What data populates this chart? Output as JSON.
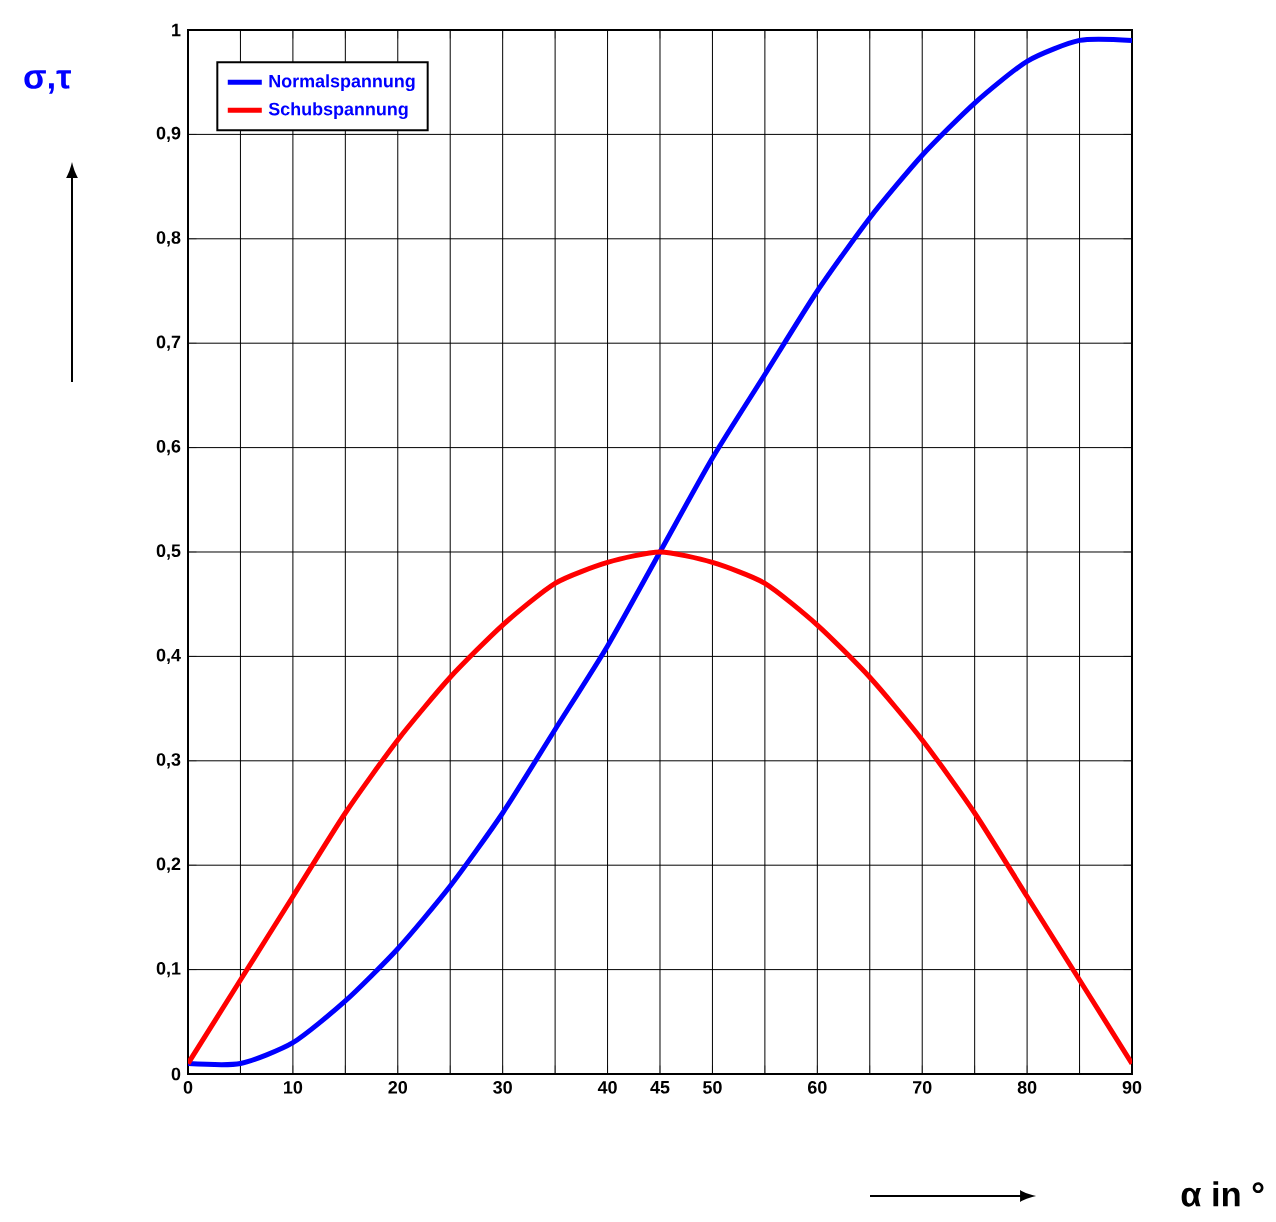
{
  "chart_data": {
    "type": "line",
    "xlabel": "α in °",
    "ylabel": "σ,τ",
    "x": [
      0,
      5,
      10,
      15,
      20,
      25,
      30,
      35,
      40,
      45,
      50,
      55,
      60,
      65,
      70,
      75,
      80,
      85,
      90
    ],
    "series": [
      {
        "name": "Normalspannung",
        "color": "#0000ff",
        "values": [
          0.01,
          0.01,
          0.03,
          0.07,
          0.12,
          0.18,
          0.25,
          0.33,
          0.41,
          0.5,
          0.59,
          0.67,
          0.75,
          0.82,
          0.88,
          0.93,
          0.97,
          0.99,
          0.99
        ]
      },
      {
        "name": "Schubspannung",
        "color": "#ff0000",
        "values": [
          0.01,
          0.09,
          0.17,
          0.25,
          0.32,
          0.38,
          0.43,
          0.47,
          0.49,
          0.5,
          0.49,
          0.47,
          0.43,
          0.38,
          0.32,
          0.25,
          0.17,
          0.09,
          0.01
        ]
      }
    ],
    "xlim": [
      0,
      90
    ],
    "ylim": [
      0,
      1
    ],
    "xticks": [
      0,
      {
        "value": 5,
        "label": null
      },
      10,
      {
        "value": 15,
        "label": null
      },
      20,
      {
        "value": 25,
        "label": null
      },
      30,
      {
        "value": 35,
        "label": null
      },
      40,
      45,
      50,
      {
        "value": 55,
        "label": null
      },
      60,
      {
        "value": 65,
        "label": null
      },
      70,
      {
        "value": 75,
        "label": null
      },
      80,
      {
        "value": 85,
        "label": null
      },
      90
    ],
    "yticks": [
      0,
      {
        "value": 0.1,
        "label": "0,1"
      },
      {
        "value": 0.2,
        "label": "0,2"
      },
      {
        "value": 0.3,
        "label": "0,3"
      },
      {
        "value": 0.4,
        "label": "0,4"
      },
      {
        "value": 0.5,
        "label": "0,5"
      },
      {
        "value": 0.6,
        "label": "0,6"
      },
      {
        "value": 0.7,
        "label": "0,7"
      },
      {
        "value": 0.8,
        "label": "0,8"
      },
      {
        "value": 0.9,
        "label": "0,9"
      },
      1
    ],
    "grid": true,
    "legend": "top left",
    "marker": "none",
    "line_style": "solid"
  }
}
